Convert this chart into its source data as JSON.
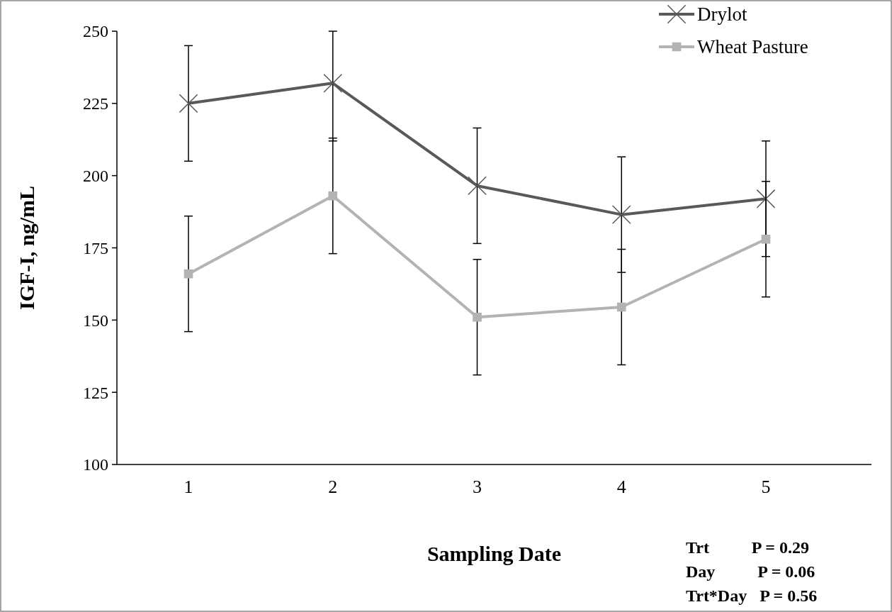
{
  "chart_data": {
    "type": "line",
    "xlabel": "Sampling Date",
    "ylabel": "IGF-I, ng/mL",
    "categories": [
      "1",
      "2",
      "3",
      "4",
      "5"
    ],
    "ylim": [
      100,
      250
    ],
    "yticks": [
      100,
      125,
      150,
      175,
      200,
      225,
      250
    ],
    "grid": false,
    "legend": "top right",
    "series": [
      {
        "name": "Drylot",
        "color": "#595959",
        "marker": "cross",
        "values": [
          225,
          232,
          196.5,
          186.5,
          192
        ],
        "errors": [
          20,
          [
            212,
            250
          ],
          20,
          20,
          20
        ]
      },
      {
        "name": "Wheat Pasture",
        "color": "#b3b3b3",
        "marker": "square",
        "values": [
          166,
          193,
          151,
          154.5,
          178
        ],
        "errors": [
          20,
          20,
          20,
          20,
          20
        ]
      }
    ],
    "annotations": [
      "Trt          P = 0.29",
      "Day          P = 0.06",
      "Trt*Day   P = 0.56"
    ]
  }
}
